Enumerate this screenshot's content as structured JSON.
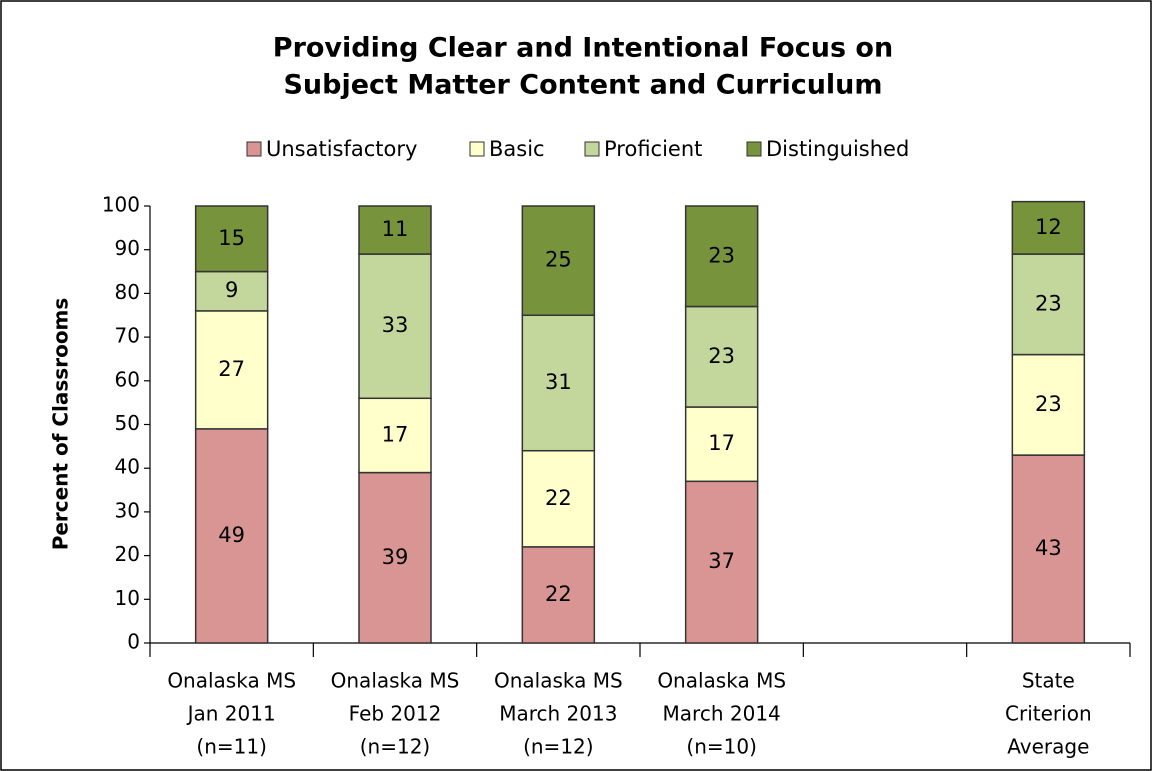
{
  "chart_data": {
    "type": "stacked_bar",
    "title": [
      "Providing Clear and Intentional Focus on",
      "Subject Matter Content and Curriculum"
    ],
    "y_label": "Percent of Classrooms",
    "categories": [
      [
        "Onalaska MS",
        "Jan 2011",
        "(n=11)"
      ],
      [
        "Onalaska MS",
        "Feb 2012",
        "(n=12)"
      ],
      [
        "Onalaska MS",
        "March 2013",
        "(n=12)"
      ],
      [
        "Onalaska MS",
        "March 2014",
        "(n=10)"
      ],
      null,
      [
        "State",
        "Criterion",
        "Average"
      ]
    ],
    "series": [
      {
        "name": "Unsatisfactory",
        "color": "#d99594",
        "values": [
          49,
          39,
          22,
          37,
          null,
          43
        ]
      },
      {
        "name": "Basic",
        "color": "#ffffcc",
        "values": [
          27,
          17,
          22,
          17,
          null,
          23
        ]
      },
      {
        "name": "Proficient",
        "color": "#c3d69b",
        "values": [
          9,
          33,
          31,
          23,
          null,
          23
        ]
      },
      {
        "name": "Distinguished",
        "color": "#77933c",
        "values": [
          15,
          11,
          25,
          23,
          null,
          12
        ]
      }
    ],
    "ylim": [
      0,
      100
    ],
    "yticks": [
      0,
      10,
      20,
      30,
      40,
      50,
      60,
      70,
      80,
      90,
      100
    ],
    "legend": "top"
  }
}
